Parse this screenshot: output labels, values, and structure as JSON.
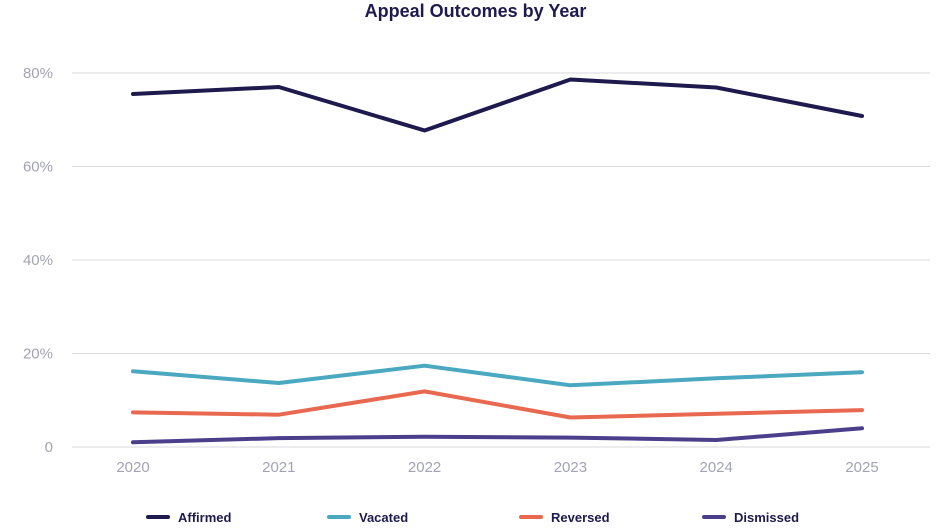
{
  "chart_data": {
    "type": "line",
    "title": "Appeal Outcomes by Year",
    "xlabel": "",
    "ylabel": "",
    "categories": [
      "2020",
      "2021",
      "2022",
      "2023",
      "2024",
      "2025"
    ],
    "ylim": [
      0,
      80
    ],
    "yticks": [
      0,
      20,
      40,
      60,
      80
    ],
    "ytick_labels": [
      "0",
      "20%",
      "40%",
      "60%",
      "80%"
    ],
    "grid": true,
    "legend_position": "bottom",
    "series": [
      {
        "name": "Affirmed",
        "color": "#1e1a4d",
        "values": [
          75.5,
          77.0,
          67.7,
          78.6,
          76.9,
          70.8
        ]
      },
      {
        "name": "Vacated",
        "color": "#4aa8c0",
        "values": [
          16.2,
          13.7,
          17.4,
          13.2,
          14.7,
          16.0
        ]
      },
      {
        "name": "Reversed",
        "color": "#e8694f",
        "values": [
          7.4,
          6.9,
          11.9,
          6.3,
          7.1,
          7.9
        ]
      },
      {
        "name": "Dismissed",
        "color": "#4b3f8c",
        "values": [
          1.0,
          1.9,
          2.2,
          2.0,
          1.5,
          4.0
        ]
      }
    ]
  }
}
